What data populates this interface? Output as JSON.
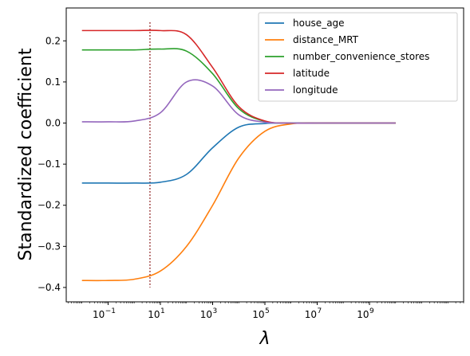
{
  "chart_data": {
    "type": "line",
    "title": "",
    "xlabel": "λ",
    "ylabel": "Standardized coefficient",
    "xscale": "log",
    "xlim": [
      0.0025,
      4000000000000
    ],
    "ylim": [
      -0.435,
      0.28
    ],
    "grid": false,
    "legend_position": "top-right",
    "x": [
      0.01,
      0.1,
      1,
      10,
      100,
      1000,
      10000,
      100000,
      1000000,
      10000000,
      100000000,
      1000000000,
      10000000000
    ],
    "x_ticks": [
      {
        "value": 0.1,
        "label": "10^-1",
        "base": "10",
        "exp": "−1"
      },
      {
        "value": 10,
        "label": "10^1",
        "base": "10",
        "exp": "1"
      },
      {
        "value": 1000,
        "label": "10^3",
        "base": "10",
        "exp": "3"
      },
      {
        "value": 100000,
        "label": "10^5",
        "base": "10",
        "exp": "5"
      },
      {
        "value": 10000000,
        "label": "10^7",
        "base": "10",
        "exp": "7"
      },
      {
        "value": 1000000000,
        "label": "10^9",
        "base": "10",
        "exp": "9"
      }
    ],
    "y_ticks": [
      {
        "value": 0.2,
        "label": "0.2"
      },
      {
        "value": 0.1,
        "label": "0.1"
      },
      {
        "value": 0.0,
        "label": "0.0"
      },
      {
        "value": -0.1,
        "label": "−0.1"
      },
      {
        "value": -0.2,
        "label": "−0.2"
      },
      {
        "value": -0.3,
        "label": "−0.3"
      },
      {
        "value": -0.4,
        "label": "−0.4"
      }
    ],
    "series": [
      {
        "name": "house_age",
        "color": "#1f77b4",
        "values": [
          -0.146,
          -0.146,
          -0.146,
          -0.144,
          -0.125,
          -0.06,
          -0.01,
          -0.001,
          0.0,
          0.0,
          0.0,
          0.0,
          0.0
        ]
      },
      {
        "name": "distance_MRT",
        "color": "#ff7f0e",
        "values": [
          -0.383,
          -0.383,
          -0.38,
          -0.36,
          -0.3,
          -0.2,
          -0.085,
          -0.02,
          -0.002,
          0.0,
          0.0,
          0.0,
          0.0
        ]
      },
      {
        "name": "number_convenience_stores",
        "color": "#2ca02c",
        "values": [
          0.178,
          0.178,
          0.178,
          0.18,
          0.175,
          0.12,
          0.035,
          0.004,
          0.0,
          0.0,
          0.0,
          0.0,
          0.0
        ]
      },
      {
        "name": "latitude",
        "color": "#d62728",
        "values": [
          0.225,
          0.225,
          0.225,
          0.225,
          0.215,
          0.135,
          0.04,
          0.005,
          0.0,
          0.0,
          0.0,
          0.0,
          0.0
        ]
      },
      {
        "name": "longitude",
        "color": "#9467bd",
        "values": [
          0.003,
          0.003,
          0.005,
          0.025,
          0.1,
          0.09,
          0.02,
          0.002,
          0.0,
          0.0,
          0.0,
          0.0,
          0.0
        ]
      }
    ],
    "vertical_marker": {
      "x": 4,
      "color": "#8b1a1a",
      "style": "dotted"
    }
  }
}
